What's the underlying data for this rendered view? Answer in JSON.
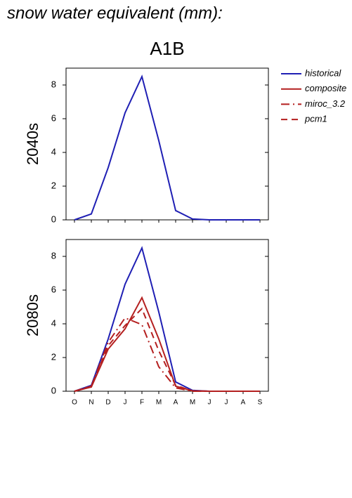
{
  "title": "snow water equivalent (mm):",
  "scenario": "A1B",
  "chart_data": [
    {
      "type": "line",
      "ylabel": "2040s",
      "ylim": [
        0,
        9
      ],
      "yticks": [
        0,
        2,
        4,
        6,
        8
      ],
      "series": [
        {
          "name": "historical",
          "color": "#1f1fb4",
          "dash": "solid",
          "values": [
            0,
            0.35,
            3.1,
            6.35,
            8.5,
            4.7,
            0.55,
            0.05,
            0,
            0,
            0,
            0
          ]
        }
      ]
    },
    {
      "type": "line",
      "ylabel": "2080s",
      "ylim": [
        0,
        9
      ],
      "yticks": [
        0,
        2,
        4,
        6,
        8
      ],
      "categories": [
        "O",
        "N",
        "D",
        "J",
        "F",
        "M",
        "A",
        "M",
        "J",
        "J",
        "A",
        "S"
      ],
      "series": [
        {
          "name": "historical",
          "color": "#1f1fb4",
          "dash": "solid",
          "values": [
            0,
            0.35,
            3.1,
            6.35,
            8.5,
            4.7,
            0.55,
            0.05,
            0,
            0,
            0,
            0
          ]
        },
        {
          "name": "composite",
          "color": "#b41f1f",
          "dash": "solid",
          "values": [
            0,
            0.25,
            2.5,
            3.7,
            5.55,
            3.1,
            0.3,
            0.02,
            0,
            0,
            0,
            0
          ]
        },
        {
          "name": "miroc_3.2",
          "color": "#b41f1f",
          "dash": "dashdot",
          "values": [
            0,
            0.3,
            2.9,
            4.35,
            3.95,
            1.45,
            0.2,
            0,
            0,
            0,
            0,
            0
          ]
        },
        {
          "name": "pcm1",
          "color": "#b41f1f",
          "dash": "dashed",
          "values": [
            0,
            0.3,
            2.7,
            3.9,
            4.9,
            2.4,
            0.35,
            0.02,
            0,
            0,
            0,
            0
          ]
        }
      ]
    }
  ]
}
